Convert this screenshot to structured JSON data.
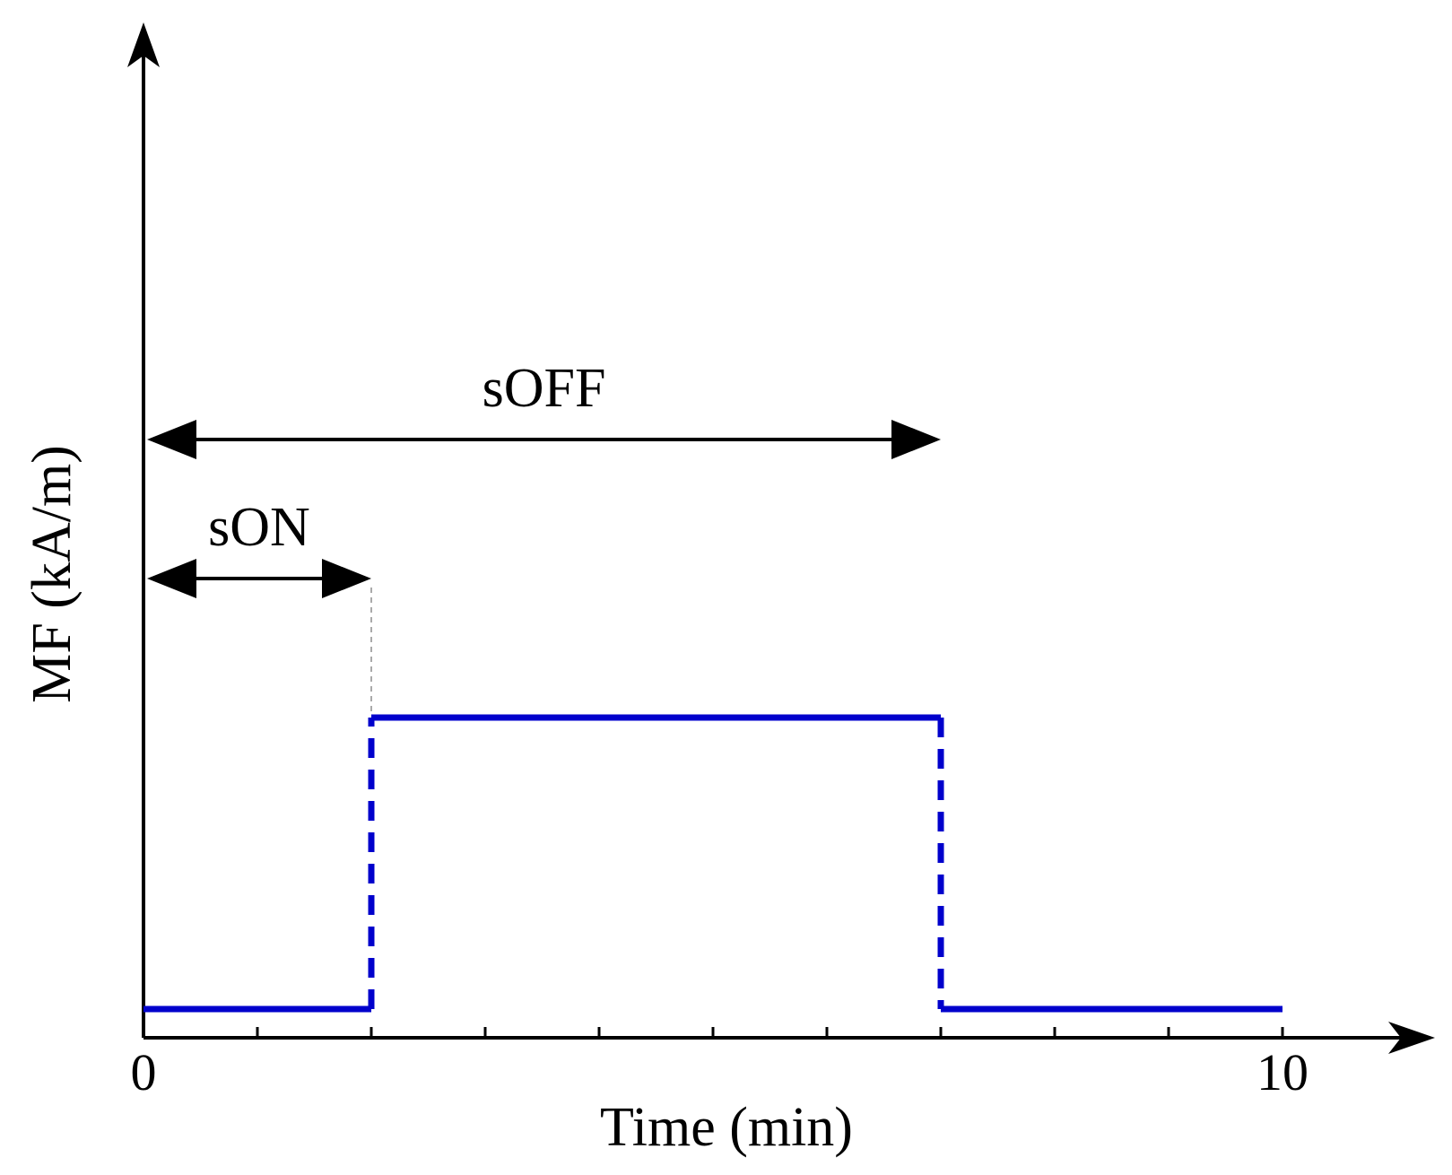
{
  "chart_data": {
    "type": "line",
    "xlabel": "Time (min)",
    "ylabel": "MF (kA/m)",
    "xlim": [
      0,
      10
    ],
    "x_tick_count": 10,
    "x_tick_labels": [
      {
        "value": 0,
        "label": "0"
      },
      {
        "value": 10,
        "label": "10"
      }
    ],
    "ylim": [
      0,
      1
    ],
    "series": [
      {
        "color": "#0000cc",
        "points": [
          {
            "x": 0,
            "y": 0
          },
          {
            "x": 2,
            "y": 0
          },
          {
            "x": 2,
            "y": 1
          },
          {
            "x": 7,
            "y": 1
          },
          {
            "x": 7,
            "y": 0
          },
          {
            "x": 10,
            "y": 0
          }
        ]
      }
    ],
    "annotations": [
      {
        "text": "sON",
        "from": 0,
        "to": 2,
        "level": 1.5
      },
      {
        "text": "sOFF",
        "from": 0,
        "to": 7,
        "level": 2.0
      }
    ]
  }
}
